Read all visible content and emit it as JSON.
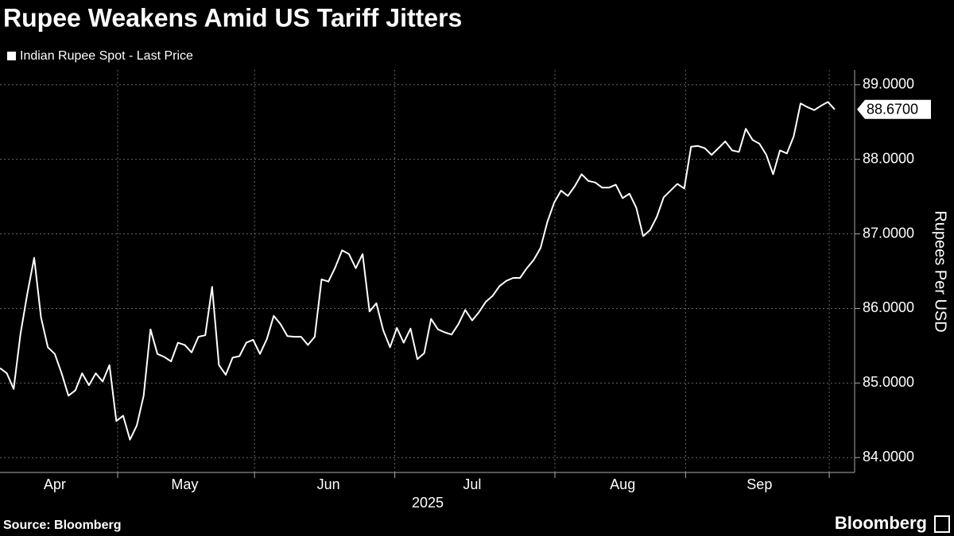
{
  "chart_data": {
    "type": "line",
    "title": "Rupee Weakens Amid US Tariff Jitters",
    "ylabel": "Rupees Per USD",
    "xlabel": "2025",
    "source": "Source: Bloomberg",
    "brand": "Bloomberg",
    "categories": [
      null,
      null,
      null,
      null,
      null,
      null,
      null,
      null,
      "Apr",
      null,
      null,
      null,
      null,
      null,
      null,
      null,
      null,
      null,
      null,
      null,
      null,
      null,
      null,
      null,
      null,
      null,
      null,
      "May",
      null,
      null,
      null,
      null,
      null,
      null,
      null,
      null,
      null,
      null,
      null,
      null,
      null,
      null,
      null,
      null,
      null,
      null,
      null,
      null,
      "Jun",
      null,
      null,
      null,
      null,
      null,
      null,
      null,
      null,
      null,
      null,
      null,
      null,
      null,
      null,
      null,
      null,
      null,
      null,
      null,
      null,
      "Jul",
      null,
      null,
      null,
      null,
      null,
      null,
      null,
      null,
      null,
      null,
      null,
      null,
      null,
      null,
      null,
      null,
      null,
      null,
      null,
      null,
      null,
      "Aug",
      null,
      null,
      null,
      null,
      null,
      null,
      null,
      null,
      null,
      null,
      null,
      null,
      null,
      null,
      null,
      null,
      null,
      null,
      null,
      "Sep",
      null,
      null,
      null,
      null,
      null,
      null,
      null,
      null,
      null,
      null,
      null
    ],
    "series": [
      {
        "name": "Indian Rupee Spot - Last Price",
        "color": "#ffffff",
        "values": [
          85.2,
          85.13,
          84.92,
          85.66,
          86.2,
          86.68,
          85.88,
          85.48,
          85.39,
          85.13,
          84.83,
          84.9,
          85.13,
          84.97,
          85.13,
          85.02,
          85.24,
          84.49,
          84.56,
          84.24,
          84.43,
          84.83,
          85.72,
          85.39,
          85.35,
          85.29,
          85.54,
          85.51,
          85.41,
          85.62,
          85.64,
          86.29,
          85.24,
          85.11,
          85.34,
          85.36,
          85.54,
          85.58,
          85.39,
          85.59,
          85.9,
          85.79,
          85.63,
          85.62,
          85.62,
          85.51,
          85.62,
          86.39,
          86.36,
          86.55,
          86.78,
          86.73,
          86.54,
          86.73,
          85.96,
          86.07,
          85.71,
          85.48,
          85.74,
          85.54,
          85.73,
          85.32,
          85.4,
          85.86,
          85.72,
          85.68,
          85.65,
          85.79,
          85.98,
          85.84,
          85.95,
          86.09,
          86.17,
          86.3,
          86.37,
          86.41,
          86.41,
          86.54,
          86.65,
          86.81,
          87.16,
          87.42,
          87.58,
          87.51,
          87.64,
          87.8,
          87.71,
          87.69,
          87.62,
          87.62,
          87.66,
          87.48,
          87.54,
          87.35,
          86.97,
          87.05,
          87.23,
          87.49,
          87.58,
          87.67,
          87.61,
          88.17,
          88.18,
          88.15,
          88.06,
          88.15,
          88.24,
          88.12,
          88.1,
          88.41,
          88.26,
          88.21,
          88.06,
          87.8,
          88.12,
          88.08,
          88.31,
          88.75,
          88.7,
          88.66,
          88.72,
          88.77,
          88.67
        ],
        "value_labels": [
          null,
          null,
          null,
          null,
          null,
          null,
          null,
          null,
          null,
          null,
          null,
          null,
          null,
          null,
          null,
          null,
          null,
          null,
          null,
          null,
          null,
          null,
          null,
          null,
          null,
          null,
          null,
          null,
          null,
          null,
          null,
          null,
          null,
          null,
          null,
          null,
          null,
          null,
          null,
          null,
          null,
          null,
          null,
          null,
          null,
          null,
          null,
          null,
          null,
          null,
          null,
          null,
          null,
          null,
          null,
          null,
          null,
          null,
          null,
          null,
          null,
          null,
          null,
          null,
          null,
          null,
          null,
          null,
          null,
          null,
          null,
          null,
          null,
          null,
          null,
          null,
          null,
          null,
          null,
          null,
          null,
          null,
          null,
          null,
          null,
          null,
          null,
          null,
          null,
          null,
          null,
          null,
          null,
          null,
          null,
          null,
          null,
          null,
          null,
          null,
          null,
          null,
          null,
          null,
          null,
          null,
          null,
          null,
          null,
          null,
          null,
          null,
          null,
          null,
          null,
          null,
          null,
          null,
          null,
          null,
          null,
          null,
          "88.6700"
        ]
      }
    ],
    "xlim": [
      0,
      122
    ],
    "xticks": [
      17.2,
      37.2,
      57.7,
      81.1,
      100.2,
      121.2
    ],
    "ylim": [
      83.8,
      89.2
    ],
    "yticks": [
      {
        "value": 84,
        "label": "84.0000"
      },
      {
        "value": 85,
        "label": "85.0000"
      },
      {
        "value": 86,
        "label": "86.0000"
      },
      {
        "value": 87,
        "label": "87.0000"
      },
      {
        "value": 88,
        "label": "88.0000"
      },
      {
        "value": 89,
        "label": "89.0000"
      }
    ],
    "grid": true,
    "legend": "top-left"
  }
}
